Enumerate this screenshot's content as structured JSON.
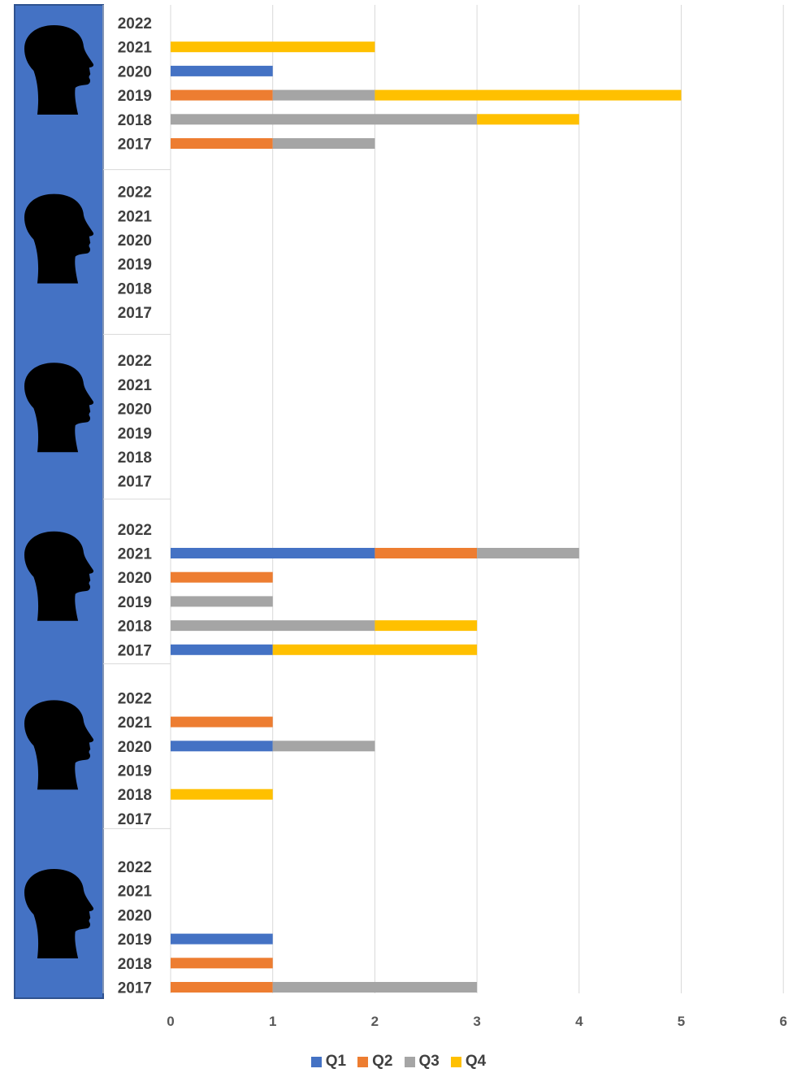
{
  "chart_data": {
    "type": "bar",
    "orientation": "horizontal",
    "stacked": true,
    "title": "",
    "xlabel": "",
    "ylabel": "",
    "xlim": [
      0,
      6
    ],
    "x_ticks": [
      "0",
      "1",
      "2",
      "3",
      "4",
      "5",
      "6"
    ],
    "grid": "vertical",
    "legend_position": "bottom",
    "group_labels": [
      "head-silhouette-icon",
      "head-silhouette-icon",
      "head-silhouette-icon",
      "head-silhouette-icon",
      "head-silhouette-icon",
      "head-silhouette-icon"
    ],
    "series_names": [
      "Q1",
      "Q2",
      "Q3",
      "Q4"
    ],
    "series_colors": [
      "#4472C4",
      "#ED7D31",
      "#A5A5A5",
      "#FFC000"
    ],
    "groups": [
      {
        "years": [
          {
            "year": "2022",
            "values": [
              0,
              0,
              0,
              0
            ]
          },
          {
            "year": "2021",
            "values": [
              0,
              0,
              0,
              2
            ]
          },
          {
            "year": "2020",
            "values": [
              1,
              0,
              0,
              0
            ]
          },
          {
            "year": "2019",
            "values": [
              0,
              1,
              1,
              3
            ]
          },
          {
            "year": "2018",
            "values": [
              0,
              0,
              3,
              1
            ]
          },
          {
            "year": "2017",
            "values": [
              0,
              1,
              1,
              0
            ]
          }
        ]
      },
      {
        "years": [
          {
            "year": "2022",
            "values": [
              0,
              0,
              0,
              0
            ]
          },
          {
            "year": "2021",
            "values": [
              0,
              0,
              0,
              0
            ]
          },
          {
            "year": "2020",
            "values": [
              0,
              0,
              0,
              0
            ]
          },
          {
            "year": "2019",
            "values": [
              0,
              0,
              0,
              0
            ]
          },
          {
            "year": "2018",
            "values": [
              0,
              0,
              0,
              0
            ]
          },
          {
            "year": "2017",
            "values": [
              0,
              0,
              0,
              0
            ]
          }
        ]
      },
      {
        "years": [
          {
            "year": "2022",
            "values": [
              0,
              0,
              0,
              0
            ]
          },
          {
            "year": "2021",
            "values": [
              0,
              0,
              0,
              0
            ]
          },
          {
            "year": "2020",
            "values": [
              0,
              0,
              0,
              0
            ]
          },
          {
            "year": "2019",
            "values": [
              0,
              0,
              0,
              0
            ]
          },
          {
            "year": "2018",
            "values": [
              0,
              0,
              0,
              0
            ]
          },
          {
            "year": "2017",
            "values": [
              0,
              0,
              0,
              0
            ]
          }
        ]
      },
      {
        "years": [
          {
            "year": "2022",
            "values": [
              0,
              0,
              0,
              0
            ]
          },
          {
            "year": "2021",
            "values": [
              2,
              1,
              1,
              0
            ]
          },
          {
            "year": "2020",
            "values": [
              0,
              1,
              0,
              0
            ]
          },
          {
            "year": "2019",
            "values": [
              0,
              0,
              1,
              0
            ]
          },
          {
            "year": "2018",
            "values": [
              0,
              0,
              2,
              1
            ]
          },
          {
            "year": "2017",
            "values": [
              1,
              0,
              0,
              2
            ]
          }
        ]
      },
      {
        "years": [
          {
            "year": "2022",
            "values": [
              0,
              0,
              0,
              0
            ]
          },
          {
            "year": "2021",
            "values": [
              0,
              1,
              0,
              0
            ]
          },
          {
            "year": "2020",
            "values": [
              1,
              0,
              1,
              0
            ]
          },
          {
            "year": "2019",
            "values": [
              0,
              0,
              0,
              0
            ]
          },
          {
            "year": "2018",
            "values": [
              0,
              0,
              0,
              1
            ]
          },
          {
            "year": "2017",
            "values": [
              0,
              0,
              0,
              0
            ]
          }
        ]
      },
      {
        "years": [
          {
            "year": "2022",
            "values": [
              0,
              0,
              0,
              0
            ]
          },
          {
            "year": "2021",
            "values": [
              0,
              0,
              0,
              0
            ]
          },
          {
            "year": "2020",
            "values": [
              0,
              0,
              0,
              0
            ]
          },
          {
            "year": "2019",
            "values": [
              1,
              0,
              0,
              0
            ]
          },
          {
            "year": "2018",
            "values": [
              0,
              1,
              0,
              0
            ]
          },
          {
            "year": "2017",
            "values": [
              0,
              1,
              2,
              0
            ]
          }
        ]
      }
    ]
  }
}
